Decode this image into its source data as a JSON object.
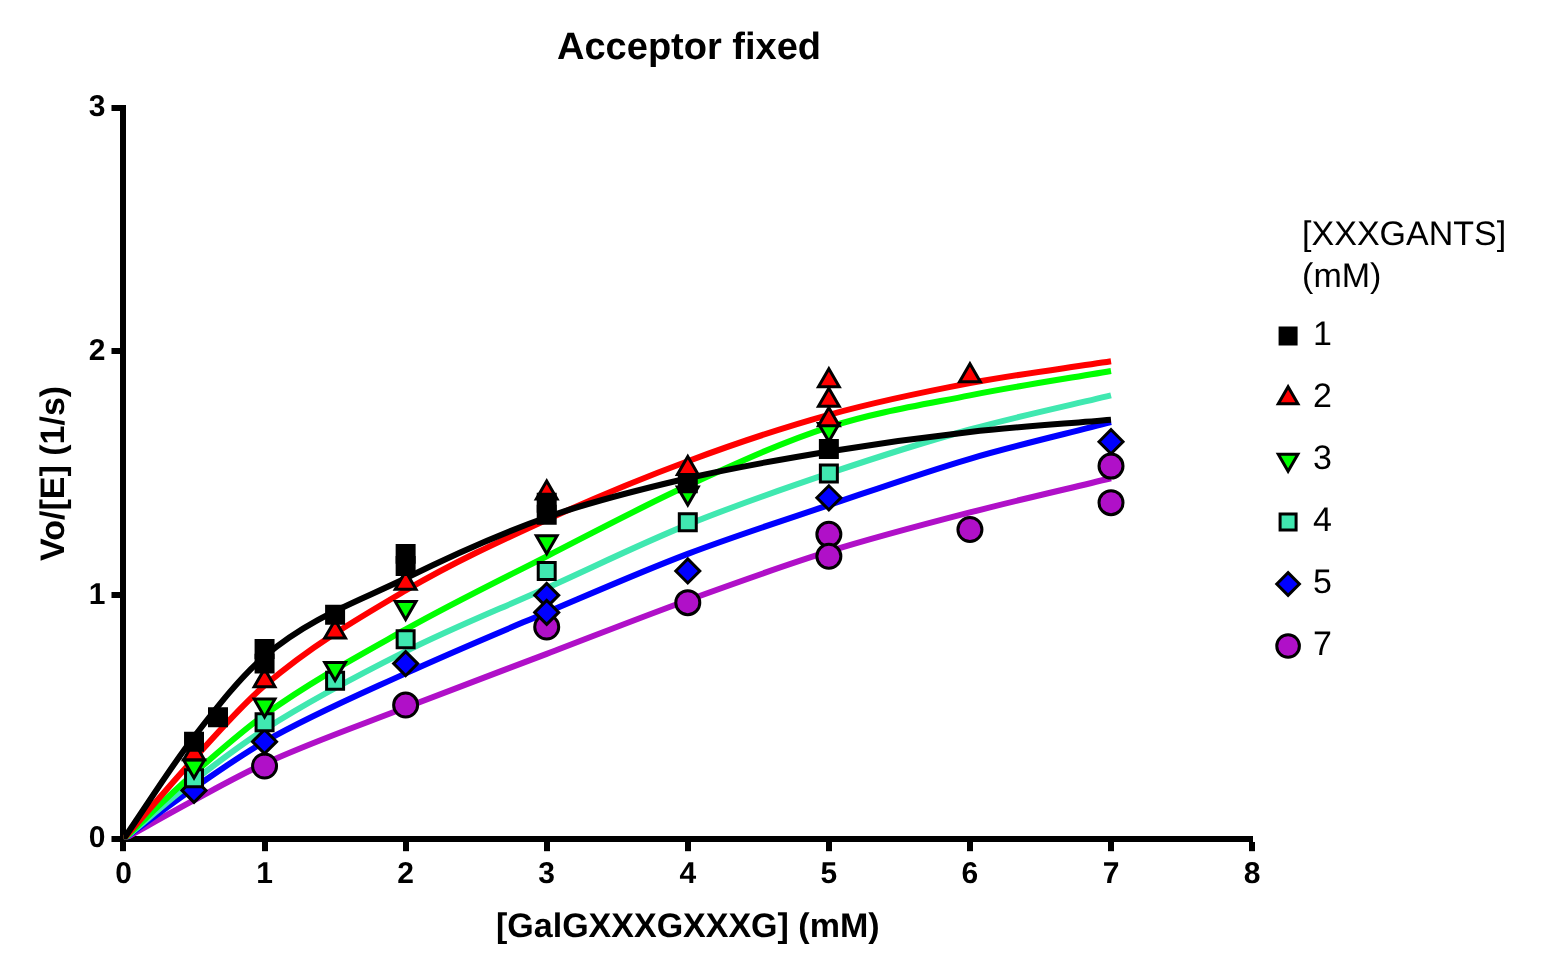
{
  "chart_data": {
    "type": "scatter",
    "title": "Acceptor fixed",
    "xlabel": "[GalGXXXGXXXG] (mM)",
    "ylabel": "Vo/[E] (1/s)",
    "legend_title": "[XXXGANTS] (mM)",
    "legend": "right",
    "grid": false,
    "xlim": [
      0,
      8
    ],
    "xticks": [
      0,
      1,
      2,
      3,
      4,
      5,
      6,
      7,
      8
    ],
    "ylim": [
      0,
      3
    ],
    "yticks": [
      0,
      1,
      2,
      3
    ],
    "series": [
      {
        "name": "1",
        "marker": "square",
        "color": "#000000",
        "x": [
          0.5,
          0.67,
          1,
          1,
          1.5,
          2,
          2,
          3,
          3,
          4,
          5
        ],
        "values": [
          0.4,
          0.5,
          0.78,
          0.72,
          0.92,
          1.17,
          1.12,
          1.38,
          1.33,
          1.46,
          1.6
        ]
      },
      {
        "name": "2",
        "marker": "triangle",
        "color": "#ff0000",
        "x": [
          0.5,
          1,
          1.5,
          2,
          3,
          4,
          5,
          5,
          5,
          6
        ],
        "values": [
          0.35,
          0.65,
          0.85,
          1.05,
          1.42,
          1.52,
          1.88,
          1.8,
          1.72,
          1.9
        ]
      },
      {
        "name": "3",
        "marker": "triangle-down",
        "color": "#00ff00",
        "x": [
          0.5,
          1,
          1.5,
          2,
          3,
          4,
          5
        ],
        "values": [
          0.3,
          0.55,
          0.7,
          0.95,
          1.22,
          1.42,
          1.68
        ]
      },
      {
        "name": "4",
        "marker": "square",
        "color": "#40e8b0",
        "x": [
          0.5,
          1,
          1.5,
          2,
          3,
          4,
          5
        ],
        "values": [
          0.25,
          0.48,
          0.65,
          0.82,
          1.1,
          1.3,
          1.5
        ]
      },
      {
        "name": "5",
        "marker": "diamond",
        "color": "#0000ff",
        "x": [
          0.5,
          1,
          2,
          3,
          3,
          4,
          5,
          7
        ],
        "values": [
          0.2,
          0.4,
          0.72,
          1.0,
          0.93,
          1.1,
          1.4,
          1.63
        ]
      },
      {
        "name": "7",
        "marker": "circle",
        "color": "#b010c8",
        "x": [
          1,
          2,
          3,
          4,
          5,
          5,
          6,
          7,
          7
        ],
        "values": [
          0.3,
          0.55,
          0.87,
          0.97,
          1.25,
          1.16,
          1.27,
          1.53,
          1.38
        ]
      },
      {
        "type": "line",
        "color": "#000000",
        "x": [
          0,
          0.5,
          1,
          2,
          3,
          4,
          5,
          6,
          7
        ],
        "values": [
          0,
          0.42,
          0.75,
          1.07,
          1.32,
          1.48,
          1.59,
          1.67,
          1.72
        ]
      },
      {
        "type": "line",
        "color": "#ff0000",
        "x": [
          0,
          0.5,
          1,
          2,
          3,
          4,
          5,
          6,
          7
        ],
        "values": [
          0,
          0.33,
          0.63,
          1.02,
          1.31,
          1.55,
          1.74,
          1.87,
          1.96
        ]
      },
      {
        "type": "line",
        "color": "#00ff00",
        "x": [
          0,
          0.5,
          1,
          2,
          3,
          4,
          5,
          6,
          7
        ],
        "values": [
          0,
          0.27,
          0.51,
          0.86,
          1.16,
          1.45,
          1.69,
          1.82,
          1.92
        ]
      },
      {
        "type": "line",
        "color": "#40e8b0",
        "x": [
          0,
          0.5,
          1,
          2,
          3,
          4,
          5,
          6,
          7
        ],
        "values": [
          0,
          0.24,
          0.45,
          0.77,
          1.03,
          1.29,
          1.5,
          1.68,
          1.82
        ]
      },
      {
        "type": "line",
        "color": "#0000ff",
        "x": [
          0,
          0.5,
          1,
          2,
          3,
          4,
          5,
          6,
          7
        ],
        "values": [
          0,
          0.21,
          0.4,
          0.68,
          0.93,
          1.17,
          1.37,
          1.56,
          1.71
        ]
      },
      {
        "type": "line",
        "color": "#b010c8",
        "x": [
          0,
          0.5,
          1,
          2,
          3,
          4,
          5,
          6,
          7
        ],
        "values": [
          0,
          0.16,
          0.31,
          0.54,
          0.76,
          0.98,
          1.18,
          1.34,
          1.48
        ]
      }
    ]
  }
}
